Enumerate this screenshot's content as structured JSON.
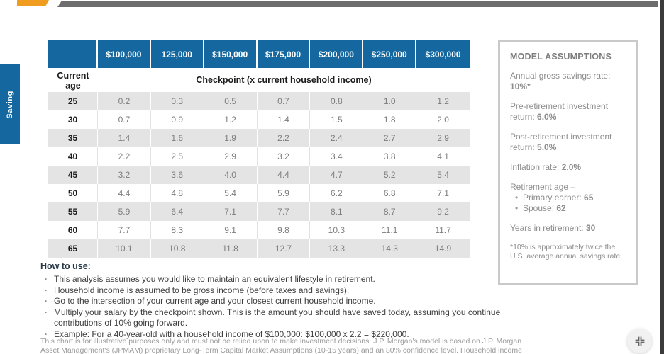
{
  "page": {
    "side_tab_label": "Saving"
  },
  "colors": {
    "accent_blue": "#15689f",
    "accent_orange": "#f09c1e",
    "top_bar_gray": "#6d6d6d",
    "row_shade_gray": "#e4e4e4",
    "panel_border_gray": "#c9c9c9"
  },
  "table": {
    "corner": "",
    "income_columns": [
      "$100,000",
      "125,000",
      "$150,000",
      "$175,000",
      "$200,000",
      "$250,000",
      "$300,000"
    ],
    "row_header_title": "Current age",
    "subheader": "Checkpoint (x current household income)",
    "rows": [
      {
        "age": "25",
        "values": [
          "0.2",
          "0.3",
          "0.5",
          "0.7",
          "0.8",
          "1.0",
          "1.2"
        ]
      },
      {
        "age": "30",
        "values": [
          "0.7",
          "0.9",
          "1.2",
          "1.4",
          "1.5",
          "1.8",
          "2.0"
        ]
      },
      {
        "age": "35",
        "values": [
          "1.4",
          "1.6",
          "1.9",
          "2.2",
          "2.4",
          "2.7",
          "2.9"
        ]
      },
      {
        "age": "40",
        "values": [
          "2.2",
          "2.5",
          "2.9",
          "3.2",
          "3.4",
          "3.8",
          "4.1"
        ]
      },
      {
        "age": "45",
        "values": [
          "3.2",
          "3.6",
          "4.0",
          "4.4",
          "4.7",
          "5.2",
          "5.4"
        ]
      },
      {
        "age": "50",
        "values": [
          "4.4",
          "4.8",
          "5.4",
          "5.9",
          "6.2",
          "6.8",
          "7.1"
        ]
      },
      {
        "age": "55",
        "values": [
          "5.9",
          "6.4",
          "7.1",
          "7.7",
          "8.1",
          "8.7",
          "9.2"
        ]
      },
      {
        "age": "60",
        "values": [
          "7.7",
          "8.3",
          "9.1",
          "9.8",
          "10.3",
          "11.1",
          "11.7"
        ]
      },
      {
        "age": "65",
        "values": [
          "10.1",
          "10.8",
          "11.8",
          "12.7",
          "13.3",
          "14.3",
          "14.9"
        ]
      }
    ]
  },
  "how_to_use": {
    "title": "How to use:",
    "bullets": [
      "This analysis assumes you would like to maintain an equivalent lifestyle in retirement.",
      "Household income is assumed to be gross income (before taxes and savings).",
      "Go to the intersection of your current age and your closest current household income.",
      "Multiply your salary by the checkpoint shown. This is the amount you should have saved today, assuming you continue contributions of 10% going forward.",
      "Example: For a 40-year-old with a household income of $100,000: $100,000 x 2.2 = $220,000."
    ]
  },
  "disclaimer": {
    "text": "This chart is for illustrative purposes only and must not be relied upon to make investment decisions. J.P. Morgan's model is based on J.P. Morgan Asset Management's (JPMAM) proprietary Long-Term Capital Market Assumptions (10-15 years) and an 80% confidence level. Household income"
  },
  "assumptions": {
    "title": "MODEL ASSUMPTIONS",
    "items": [
      {
        "text": "Annual gross savings rate: ",
        "bold": "10%*"
      },
      {
        "text": "Pre-retirement investment return: ",
        "bold": "6.0%"
      },
      {
        "text": "Post-retirement investment return: ",
        "bold": "5.0%"
      },
      {
        "text": "Inflation rate: ",
        "bold": "2.0%"
      },
      {
        "text": "Retirement age –",
        "bold": "",
        "bullets": [
          {
            "text": "Primary earner: ",
            "bold": "65"
          },
          {
            "text": "Spouse: ",
            "bold": "62"
          }
        ]
      },
      {
        "text": "Years in retirement: ",
        "bold": "30"
      }
    ],
    "footnote": "*10% is approximately twice the U.S. average annual savings rate"
  }
}
